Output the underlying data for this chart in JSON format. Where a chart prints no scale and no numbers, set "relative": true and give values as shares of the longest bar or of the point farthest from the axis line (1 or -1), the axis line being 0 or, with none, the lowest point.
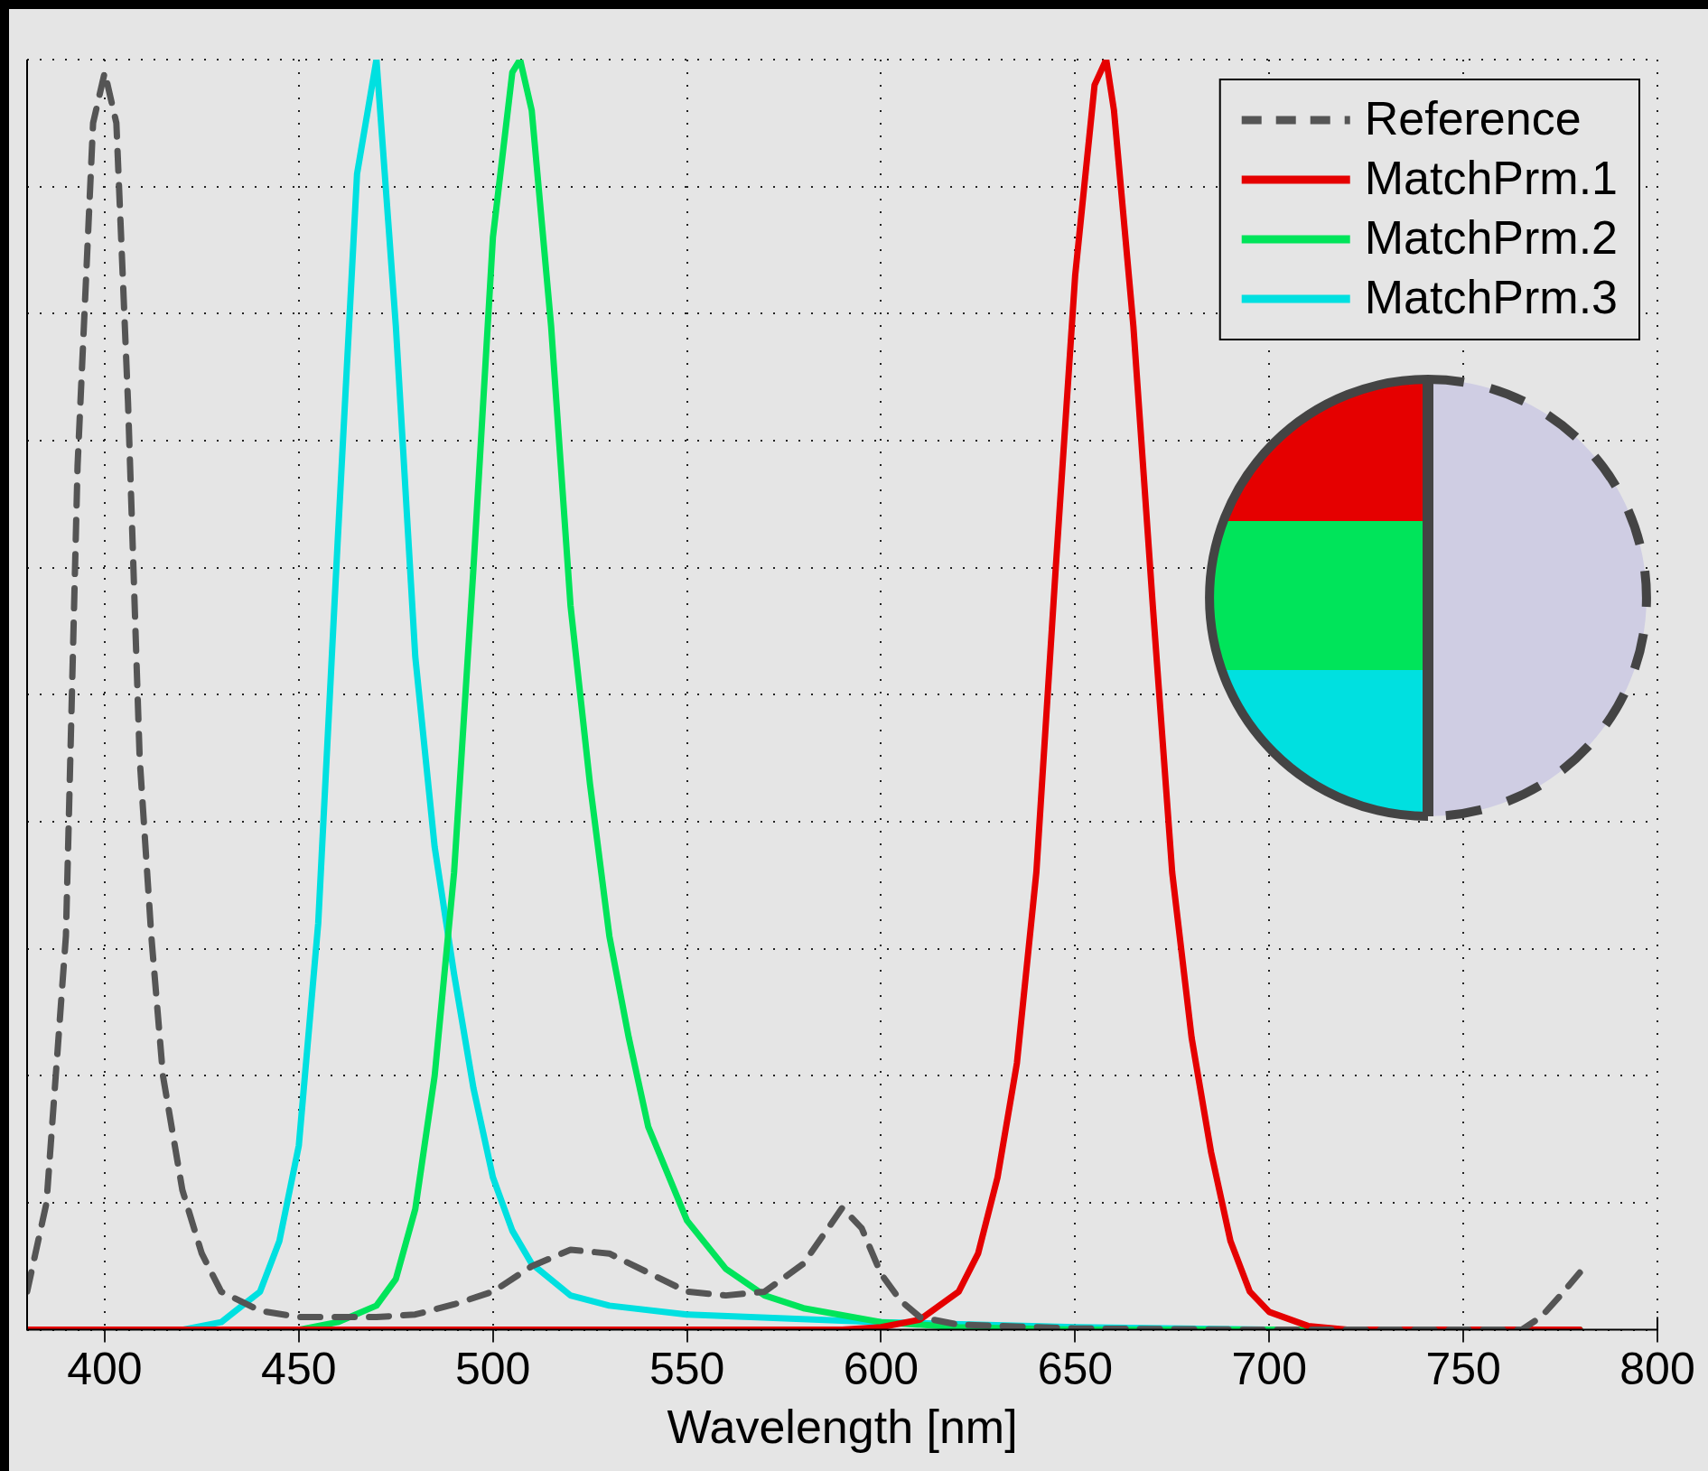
{
  "chart_data": {
    "type": "line",
    "xlabel": "Wavelength [nm]",
    "relative": true,
    "xlim": [
      380,
      800
    ],
    "xticks": [
      400,
      450,
      500,
      550,
      600,
      650,
      700,
      750,
      800
    ],
    "grid": true,
    "legend": "top right",
    "tick_labels": "x",
    "series": [
      {
        "name": "Reference",
        "color": "#555555",
        "line_style": "dashed",
        "x": [
          380,
          385,
          390,
          393,
          397,
          400,
          403,
          406,
          409,
          412,
          415,
          420,
          425,
          430,
          440,
          450,
          470,
          480,
          490,
          500,
          510,
          520,
          530,
          540,
          550,
          560,
          570,
          580,
          590,
          595,
          600,
          605,
          610,
          620,
          650,
          700,
          765,
          770,
          775,
          780
        ],
        "values": [
          0.03,
          0.1,
          0.31,
          0.68,
          0.95,
          0.99,
          0.95,
          0.73,
          0.45,
          0.31,
          0.2,
          0.11,
          0.06,
          0.03,
          0.015,
          0.01,
          0.01,
          0.012,
          0.02,
          0.03,
          0.05,
          0.063,
          0.06,
          0.045,
          0.03,
          0.027,
          0.03,
          0.052,
          0.096,
          0.08,
          0.044,
          0.023,
          0.01,
          0.004,
          0.001,
          0,
          0,
          0.01,
          0.027,
          0.045
        ]
      },
      {
        "name": "MatchPrm.1",
        "color": "#e50000",
        "x": [
          380,
          590,
          600,
          610,
          620,
          625,
          630,
          635,
          640,
          645,
          650,
          655,
          658,
          660,
          665,
          670,
          675,
          680,
          685,
          690,
          695,
          700,
          710,
          720,
          780
        ],
        "values": [
          0,
          0,
          0.002,
          0.008,
          0.03,
          0.06,
          0.12,
          0.21,
          0.36,
          0.6,
          0.83,
          0.98,
          1,
          0.96,
          0.79,
          0.57,
          0.36,
          0.23,
          0.14,
          0.07,
          0.03,
          0.014,
          0.003,
          0,
          0
        ]
      },
      {
        "name": "MatchPrm.2",
        "color": "#00e45a",
        "x": [
          380,
          450,
          460,
          470,
          475,
          480,
          485,
          490,
          495,
          500,
          505,
          507,
          510,
          515,
          520,
          525,
          530,
          535,
          540,
          550,
          560,
          570,
          580,
          600,
          620,
          650,
          780
        ],
        "values": [
          0,
          0,
          0.006,
          0.019,
          0.04,
          0.095,
          0.2,
          0.36,
          0.6,
          0.86,
          0.99,
          1,
          0.96,
          0.79,
          0.57,
          0.43,
          0.31,
          0.23,
          0.16,
          0.086,
          0.048,
          0.027,
          0.017,
          0.006,
          0.002,
          0,
          0
        ]
      },
      {
        "name": "MatchPrm.3",
        "color": "#00e0e0",
        "x": [
          380,
          420,
          430,
          440,
          445,
          450,
          455,
          460,
          465,
          470,
          475,
          480,
          485,
          490,
          495,
          500,
          505,
          510,
          520,
          530,
          550,
          600,
          650,
          700,
          780
        ],
        "values": [
          0,
          0,
          0.006,
          0.03,
          0.07,
          0.145,
          0.32,
          0.62,
          0.91,
          1,
          0.79,
          0.53,
          0.38,
          0.28,
          0.19,
          0.12,
          0.078,
          0.052,
          0.027,
          0.019,
          0.012,
          0.006,
          0.002,
          0,
          0
        ]
      }
    ]
  }
}
